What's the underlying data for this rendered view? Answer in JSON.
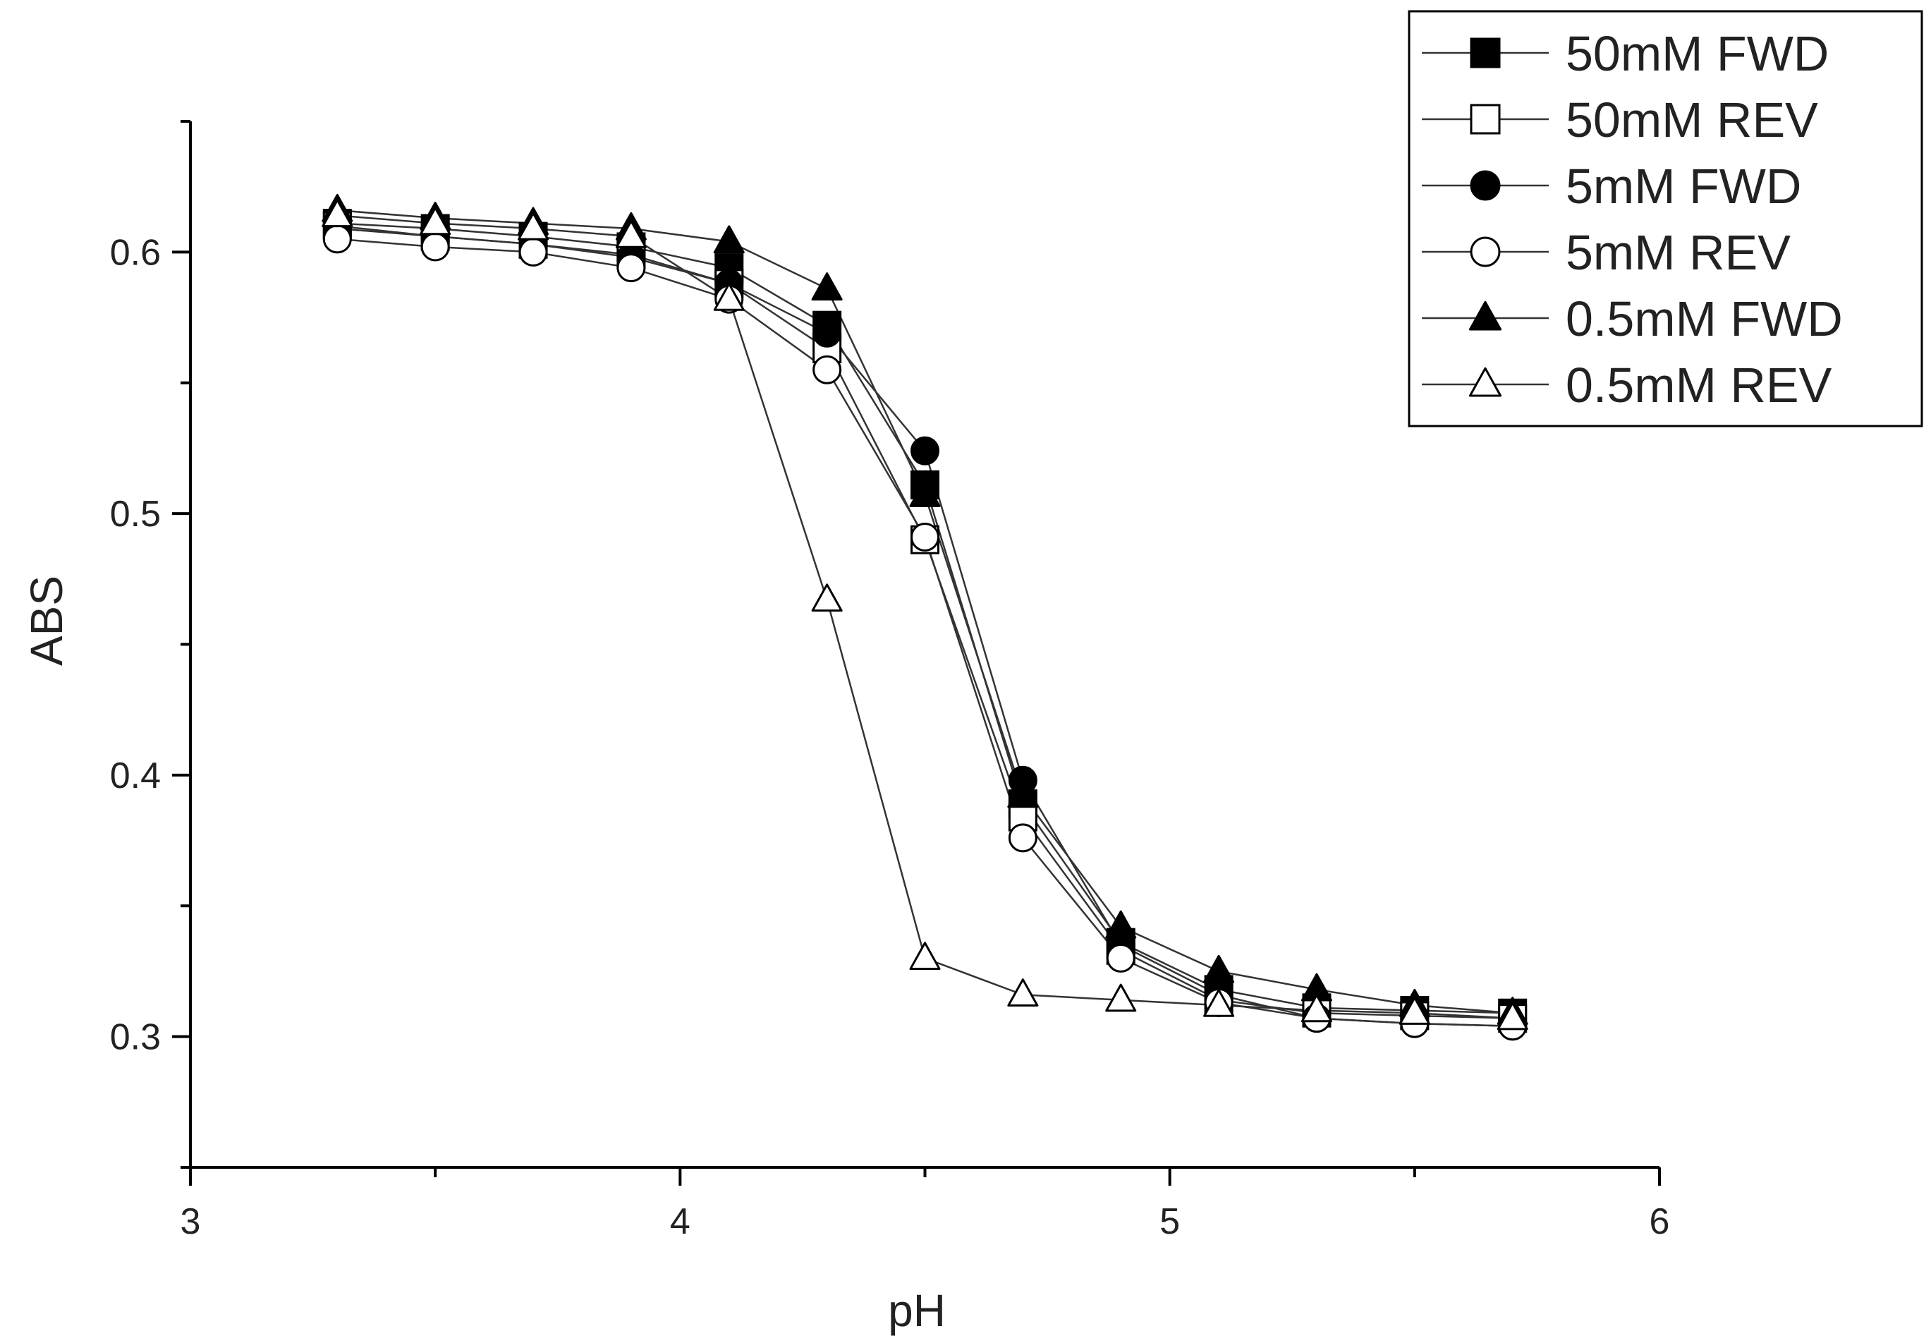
{
  "chart_data": {
    "type": "line",
    "title": "",
    "xlabel": "pH",
    "ylabel": "ABS",
    "xlim": [
      3,
      6
    ],
    "ylim": [
      0.25,
      0.65
    ],
    "xticks": [
      3,
      4,
      5,
      6
    ],
    "xtick_labels": [
      "3",
      "4",
      "5",
      "6"
    ],
    "xminor": [
      3.5,
      4.5,
      5.5
    ],
    "yticks": [
      0.3,
      0.4,
      0.5,
      0.6
    ],
    "ytick_labels": [
      "0.3",
      "0.4",
      "0.5",
      "0.6"
    ],
    "yminor": [
      0.25,
      0.35,
      0.45,
      0.55,
      0.65
    ],
    "grid": false,
    "legend_position": "top-right",
    "x": [
      3.3,
      3.5,
      3.7,
      3.9,
      4.1,
      4.3,
      4.5,
      4.7,
      4.9,
      5.1,
      5.3,
      5.5,
      5.7
    ],
    "series": [
      {
        "name": "50mM FWD",
        "marker": "square",
        "fill": "filled",
        "values": [
          0.611,
          0.609,
          0.606,
          0.602,
          0.594,
          0.572,
          0.511,
          0.389,
          0.336,
          0.318,
          0.311,
          0.31,
          0.309
        ]
      },
      {
        "name": "50mM REV",
        "marker": "square",
        "fill": "open",
        "values": [
          0.61,
          0.606,
          0.603,
          0.599,
          0.588,
          0.563,
          0.49,
          0.384,
          0.333,
          0.314,
          0.309,
          0.308,
          0.307
        ]
      },
      {
        "name": "5mM FWD",
        "marker": "circle",
        "fill": "filled",
        "values": [
          0.609,
          0.606,
          0.603,
          0.598,
          0.588,
          0.569,
          0.524,
          0.398,
          0.335,
          0.316,
          0.307,
          0.305,
          0.304
        ]
      },
      {
        "name": "5mM REV",
        "marker": "circle",
        "fill": "open",
        "values": [
          0.605,
          0.602,
          0.6,
          0.594,
          0.582,
          0.555,
          0.491,
          0.376,
          0.33,
          0.313,
          0.307,
          0.305,
          0.304
        ]
      },
      {
        "name": "0.5mM FWD",
        "marker": "triangle",
        "fill": "filled",
        "values": [
          0.616,
          0.613,
          0.611,
          0.609,
          0.604,
          0.586,
          0.507,
          0.392,
          0.342,
          0.325,
          0.318,
          0.312,
          0.309
        ]
      },
      {
        "name": "0.5mM REV",
        "marker": "triangle",
        "fill": "open",
        "values": [
          0.614,
          0.611,
          0.609,
          0.606,
          0.582,
          0.467,
          0.33,
          0.316,
          0.314,
          0.312,
          0.31,
          0.309,
          0.307
        ]
      }
    ]
  }
}
